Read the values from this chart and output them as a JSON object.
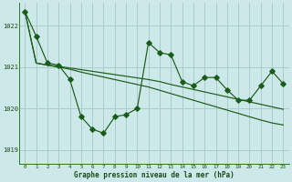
{
  "title": "Graphe pression niveau de la mer (hPa)",
  "background_color": "#cce8e8",
  "grid_color": "#aacccc",
  "line_color": "#1a5c1a",
  "xlim": [
    -0.5,
    23.5
  ],
  "ylim": [
    1018.65,
    1022.55
  ],
  "yticks": [
    1019,
    1020,
    1021,
    1022
  ],
  "xtick_labels": [
    "0",
    "1",
    "2",
    "3",
    "4",
    "5",
    "6",
    "7",
    "8",
    "9",
    "10",
    "11",
    "12",
    "13",
    "14",
    "15",
    "16",
    "17",
    "18",
    "19",
    "20",
    "21",
    "22",
    "23"
  ],
  "s1": [
    1022.35,
    1021.75,
    1021.1,
    1021.05,
    1020.7,
    1019.8,
    1019.5,
    1019.4,
    1019.8,
    1019.85,
    1020.0,
    1021.6,
    1021.35,
    1021.3,
    1020.65,
    1020.55,
    1020.75,
    1020.75,
    1020.45,
    1020.2,
    1020.2,
    1020.55,
    1020.9,
    1020.6
  ],
  "s2": [
    1022.35,
    1021.1,
    1021.05,
    1021.02,
    1020.98,
    1020.94,
    1020.9,
    1020.86,
    1020.82,
    1020.78,
    1020.74,
    1020.7,
    1020.65,
    1020.58,
    1020.52,
    1020.46,
    1020.4,
    1020.34,
    1020.28,
    1020.22,
    1020.16,
    1020.1,
    1020.04,
    1019.98
  ],
  "s3": [
    1022.35,
    1021.1,
    1021.05,
    1021.0,
    1020.95,
    1020.88,
    1020.82,
    1020.76,
    1020.7,
    1020.64,
    1020.58,
    1020.52,
    1020.44,
    1020.36,
    1020.28,
    1020.2,
    1020.12,
    1020.04,
    1019.96,
    1019.88,
    1019.8,
    1019.72,
    1019.65,
    1019.6
  ],
  "markersize": 2.8
}
